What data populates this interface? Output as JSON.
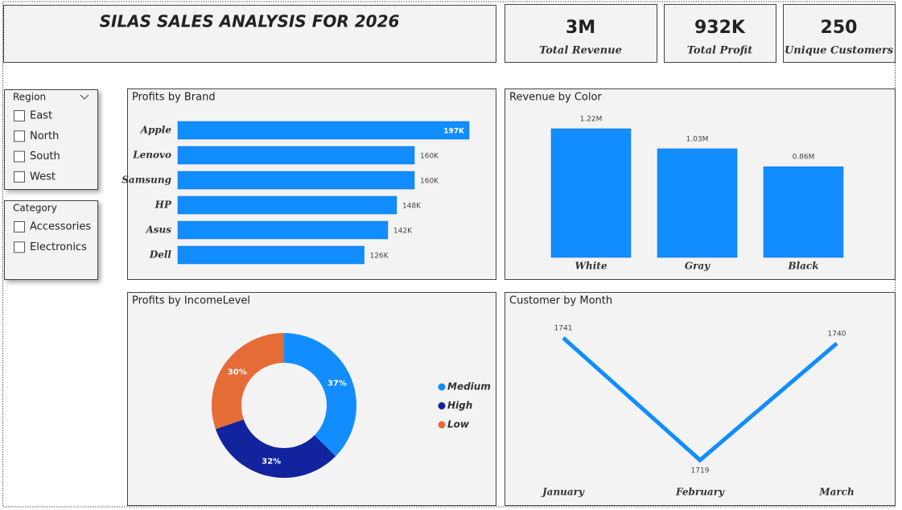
{
  "header": {
    "title": "SILAS SALES ANALYSIS FOR 2026"
  },
  "kpis": [
    {
      "value": "3M",
      "label": "Total Revenue"
    },
    {
      "value": "932K",
      "label": "Total Profit"
    },
    {
      "value": "250",
      "label": "Unique Customers"
    }
  ],
  "slicers": [
    {
      "title": "Region",
      "items": [
        "East",
        "North",
        "South",
        "West"
      ]
    },
    {
      "title": "Category",
      "items": [
        "Accessories",
        "Electronics"
      ]
    }
  ],
  "chart_data": [
    {
      "type": "bar",
      "orientation": "horizontal",
      "title": "Profits by Brand",
      "categories": [
        "Apple",
        "Lenovo",
        "Samsung",
        "HP",
        "Asus",
        "Dell"
      ],
      "values": [
        197000,
        160000,
        160000,
        148000,
        142000,
        126000
      ],
      "value_labels": [
        "197K",
        "160K",
        "160K",
        "148K",
        "142K",
        "126K"
      ],
      "color": "#118dff"
    },
    {
      "type": "bar",
      "orientation": "vertical",
      "title": "Revenue by Color",
      "categories": [
        "White",
        "Gray",
        "Black"
      ],
      "values": [
        1220000,
        1030000,
        860000
      ],
      "value_labels": [
        "1.22M",
        "1.03M",
        "0.86M"
      ],
      "color": "#118dff"
    },
    {
      "type": "donut",
      "title": "Profits by IncomeLevel",
      "categories": [
        "Medium",
        "High",
        "Low"
      ],
      "values": [
        37,
        32,
        30
      ],
      "value_labels": [
        "37%",
        "32%",
        "30%"
      ],
      "colors": [
        "#118dff",
        "#12239e",
        "#e66c37"
      ]
    },
    {
      "type": "line",
      "title": "Customer by Month",
      "categories": [
        "January",
        "February",
        "March"
      ],
      "values": [
        1741,
        1719,
        1740
      ],
      "color": "#118dff"
    }
  ]
}
